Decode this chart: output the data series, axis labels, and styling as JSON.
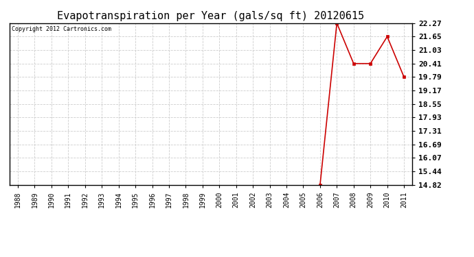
{
  "title": "Evapotranspiration per Year (gals/sq ft) 20120615",
  "copyright": "Copyright 2012 Cartronics.com",
  "x_years": [
    1988,
    1989,
    1990,
    1991,
    1992,
    1993,
    1994,
    1995,
    1996,
    1997,
    1998,
    1999,
    2000,
    2001,
    2002,
    2003,
    2004,
    2005,
    2006,
    2007,
    2008,
    2009,
    2010,
    2011
  ],
  "y_values": [
    null,
    null,
    null,
    null,
    null,
    null,
    null,
    null,
    null,
    null,
    null,
    null,
    null,
    null,
    null,
    null,
    null,
    null,
    14.82,
    22.27,
    20.41,
    20.41,
    21.65,
    19.79
  ],
  "yticks": [
    14.82,
    15.44,
    16.07,
    16.69,
    17.31,
    17.93,
    18.55,
    19.17,
    19.79,
    20.41,
    21.03,
    21.65,
    22.27
  ],
  "ymin": 14.82,
  "ymax": 22.27,
  "line_color": "#cc0000",
  "marker": "s",
  "marker_size": 3,
  "background_color": "#ffffff",
  "plot_bg_color": "#ffffff",
  "grid_color": "#cccccc",
  "title_fontsize": 11,
  "copyright_fontsize": 6,
  "tick_fontsize": 8,
  "xtick_fontsize": 7
}
